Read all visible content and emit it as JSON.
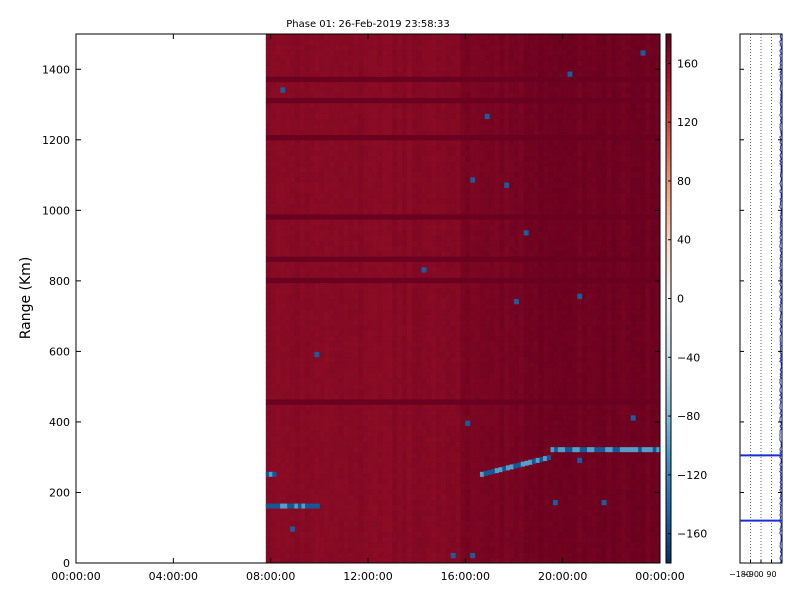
{
  "figure": {
    "title": "Phase 01: 26-Feb-2019 23:58:33"
  },
  "chart_data": [
    {
      "type": "heatmap",
      "ylabel": "Range (Km)",
      "xlabel": "",
      "x_tick_labels": [
        "00:00:00",
        "04:00:00",
        "08:00:00",
        "12:00:00",
        "16:00:00",
        "20:00:00",
        "00:00:00"
      ],
      "x_ticks_hours": [
        0,
        4,
        8,
        12,
        16,
        20,
        24
      ],
      "xlim_hours": [
        0,
        24
      ],
      "y_ticks": [
        0,
        200,
        400,
        600,
        800,
        1000,
        1200,
        1400
      ],
      "ylim": [
        0,
        1500
      ],
      "data_start_hour": 7.8,
      "data_end_hour": 24,
      "colorbar": {
        "colormap": "RdBu_r",
        "vmin": -180,
        "vmax": 180,
        "ticks": [
          160,
          120,
          80,
          40,
          0,
          -40,
          -80,
          -120,
          -160
        ],
        "tick_labels": [
          "160",
          "120",
          "80",
          "40",
          "0",
          "−40",
          "−80",
          "−120",
          "−160"
        ]
      },
      "dominant_phase_value": 165,
      "darker_bands": [
        {
          "start_hour": 15.7,
          "end_hour": 18.3,
          "value": 172
        },
        {
          "start_hour": 18.3,
          "end_hour": 24,
          "value": 176
        }
      ],
      "echo_features": [
        {
          "name": "low echo",
          "start_hour": 7.8,
          "end_hour": 10.0,
          "range_km": 160
        },
        {
          "name": "low echo",
          "start_hour": 7.8,
          "end_hour": 8.2,
          "range_km": 250
        },
        {
          "name": "rising layer",
          "start_hour": 16.6,
          "end_hour": 19.5,
          "range_km_start": 250,
          "range_km_end": 300
        },
        {
          "name": "layer",
          "start_hour": 19.5,
          "end_hour": 24,
          "range_km": 320
        }
      ],
      "horizontal_stripes_km": [
        1360,
        1300,
        1200,
        980,
        860,
        800,
        450
      ],
      "grid": false,
      "legend": false
    },
    {
      "type": "line",
      "panel": "profile",
      "x_tick_labels": [
        "−180",
        "−90",
        "0",
        "90"
      ],
      "x_ticks": [
        -180,
        -90,
        0,
        90
      ],
      "xlim": [
        -180,
        180
      ],
      "ylim": [
        0,
        1500
      ],
      "y_ticks": [
        0,
        200,
        400,
        600,
        800,
        1000,
        1200,
        1400
      ],
      "series": [
        {
          "range_km": [
            0,
            100,
            120,
            200,
            300,
            305,
            400,
            500,
            600,
            700,
            800,
            900,
            1000,
            1100,
            1200,
            1300,
            1400,
            1500
          ],
          "values": [
            170,
            168,
            -180,
            172,
            166,
            -180,
            170,
            168,
            171,
            167,
            170,
            169,
            172,
            168,
            170,
            167,
            171,
            169
          ],
          "spikes_km": [
            120,
            305
          ]
        }
      ],
      "dotted_gridlines_x": [
        -180,
        -90,
        0,
        90
      ],
      "grid": true,
      "legend": false
    }
  ]
}
